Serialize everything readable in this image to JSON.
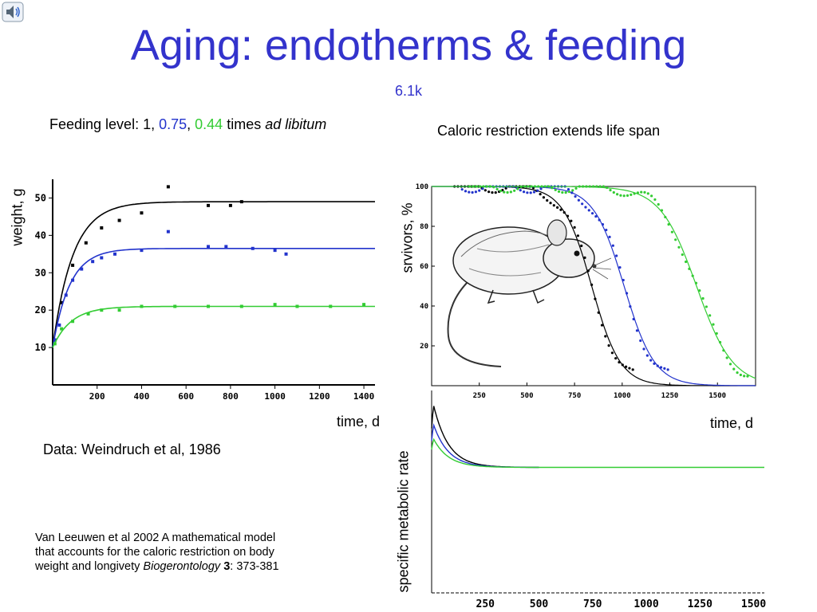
{
  "slide": {
    "title": "Aging: endotherms & feeding",
    "subtitle": "6.1k",
    "feeding_prefix": "Feeding level: 1, ",
    "feeding_val1": "0.75",
    "feeding_sep": ", ",
    "feeding_val2": "0.44",
    "feeding_mid": " times ",
    "feeding_italic": "ad libitum",
    "caloric_label": "Caloric restriction extends life span",
    "data_source": "Data: Weindruch et al, 1986",
    "reference_text": "Van Leeuwen et al 2002 A mathematical model that accounts for the caloric restriction on body weight and longivety ",
    "reference_journal": "Biogerontology",
    "reference_volume": " 3",
    "reference_pages": ": 373-381",
    "icons": {
      "speaker": "speaker-icon",
      "mouse": "mouse-illustration"
    }
  },
  "colors": {
    "title": "#3333cc",
    "ad_lib": "#000000",
    "level_075": "#2233cc",
    "level_044": "#33cc33"
  },
  "chart_data": [
    {
      "type": "line",
      "ylabel": "weight, g",
      "xlabel": "time, d",
      "x_ticks": [
        200,
        400,
        600,
        800,
        1000,
        1200,
        1400
      ],
      "y_ticks": [
        10,
        20,
        30,
        40,
        50
      ],
      "xlim": [
        0,
        1450
      ],
      "ylim": [
        0,
        55
      ],
      "series": [
        {
          "name": "1",
          "color": "#000000",
          "asymptote": 49,
          "start": 10,
          "rate": 0.011,
          "points": [
            [
              10,
              12
            ],
            [
              40,
              22
            ],
            [
              90,
              32
            ],
            [
              150,
              38
            ],
            [
              220,
              42
            ],
            [
              300,
              44
            ],
            [
              400,
              46
            ],
            [
              520,
              53
            ],
            [
              700,
              48
            ],
            [
              800,
              48
            ],
            [
              850,
              49
            ]
          ]
        },
        {
          "name": "0.75",
          "color": "#2233cc",
          "asymptote": 36.5,
          "start": 10,
          "rate": 0.013,
          "points": [
            [
              10,
              12
            ],
            [
              30,
              16
            ],
            [
              60,
              24
            ],
            [
              90,
              28
            ],
            [
              130,
              31
            ],
            [
              180,
              33
            ],
            [
              220,
              34
            ],
            [
              280,
              35
            ],
            [
              400,
              36
            ],
            [
              520,
              41
            ],
            [
              700,
              37
            ],
            [
              780,
              37
            ],
            [
              900,
              36.5
            ],
            [
              1000,
              36
            ],
            [
              1050,
              35
            ]
          ]
        },
        {
          "name": "0.44",
          "color": "#33cc33",
          "asymptote": 21,
          "start": 10,
          "rate": 0.012,
          "points": [
            [
              10,
              11
            ],
            [
              40,
              15
            ],
            [
              90,
              17
            ],
            [
              160,
              19
            ],
            [
              220,
              20
            ],
            [
              300,
              20
            ],
            [
              400,
              21
            ],
            [
              550,
              21
            ],
            [
              700,
              21
            ],
            [
              850,
              21
            ],
            [
              1000,
              21.5
            ],
            [
              1100,
              21
            ],
            [
              1250,
              21
            ],
            [
              1400,
              21.5
            ]
          ]
        }
      ]
    },
    {
      "type": "line",
      "ylabel": "srvivors, %",
      "xlabel": "time, d",
      "x_ticks": [
        250,
        500,
        750,
        1000,
        1250,
        1500
      ],
      "y_ticks": [
        20,
        40,
        60,
        80,
        100
      ],
      "xlim": [
        0,
        1700
      ],
      "ylim": [
        0,
        100
      ],
      "series": [
        {
          "name": "1",
          "color": "#000000",
          "median": 840,
          "width": 75
        },
        {
          "name": "0.75",
          "color": "#2233cc",
          "median": 1010,
          "width": 80
        },
        {
          "name": "0.44",
          "color": "#33cc33",
          "median": 1390,
          "width": 95
        }
      ]
    },
    {
      "type": "line",
      "ylabel": "specific metabolic rate",
      "xlabel": "",
      "x_ticks": [
        250,
        500,
        750,
        1000,
        1250,
        1500
      ],
      "xlim": [
        0,
        1550
      ],
      "ylim": [
        0,
        1
      ],
      "series": [
        {
          "name": "1",
          "color": "#000000",
          "peak": 0.97,
          "base": 0.62,
          "end": 500
        },
        {
          "name": "0.75",
          "color": "#2233cc",
          "peak": 0.86,
          "base": 0.62,
          "end": 500
        },
        {
          "name": "0.44",
          "color": "#33cc33",
          "peak": 0.78,
          "base": 0.62,
          "end": 1550
        }
      ]
    }
  ]
}
